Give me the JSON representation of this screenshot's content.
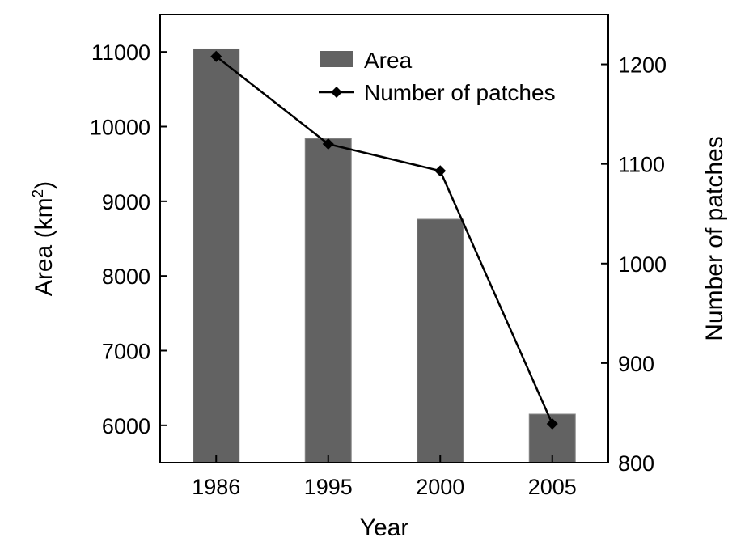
{
  "chart_data": {
    "type": "bar",
    "categories": [
      "1986",
      "1995",
      "2000",
      "2005"
    ],
    "xlabel": "Year",
    "ylabel": {
      "base": "Area (km",
      "sup": "2",
      "suffix": ")"
    },
    "y2label": "Number of patches",
    "ylim": [
      5500,
      11500
    ],
    "y2lim": [
      800,
      1250
    ],
    "yticks": [
      6000,
      7000,
      8000,
      9000,
      10000,
      11000
    ],
    "y2ticks": [
      800,
      900,
      1000,
      1100,
      1200
    ],
    "grid": false,
    "legend_position": "top-right",
    "series": [
      {
        "name": "Area",
        "type": "bar",
        "axis": "left",
        "values": [
          11040,
          9840,
          8760,
          6150
        ],
        "color": "#626262"
      },
      {
        "name": "Number of patches",
        "type": "line",
        "axis": "right",
        "marker": "diamond",
        "values": [
          1208,
          1120,
          1093,
          839
        ],
        "color": "#000000"
      }
    ]
  }
}
